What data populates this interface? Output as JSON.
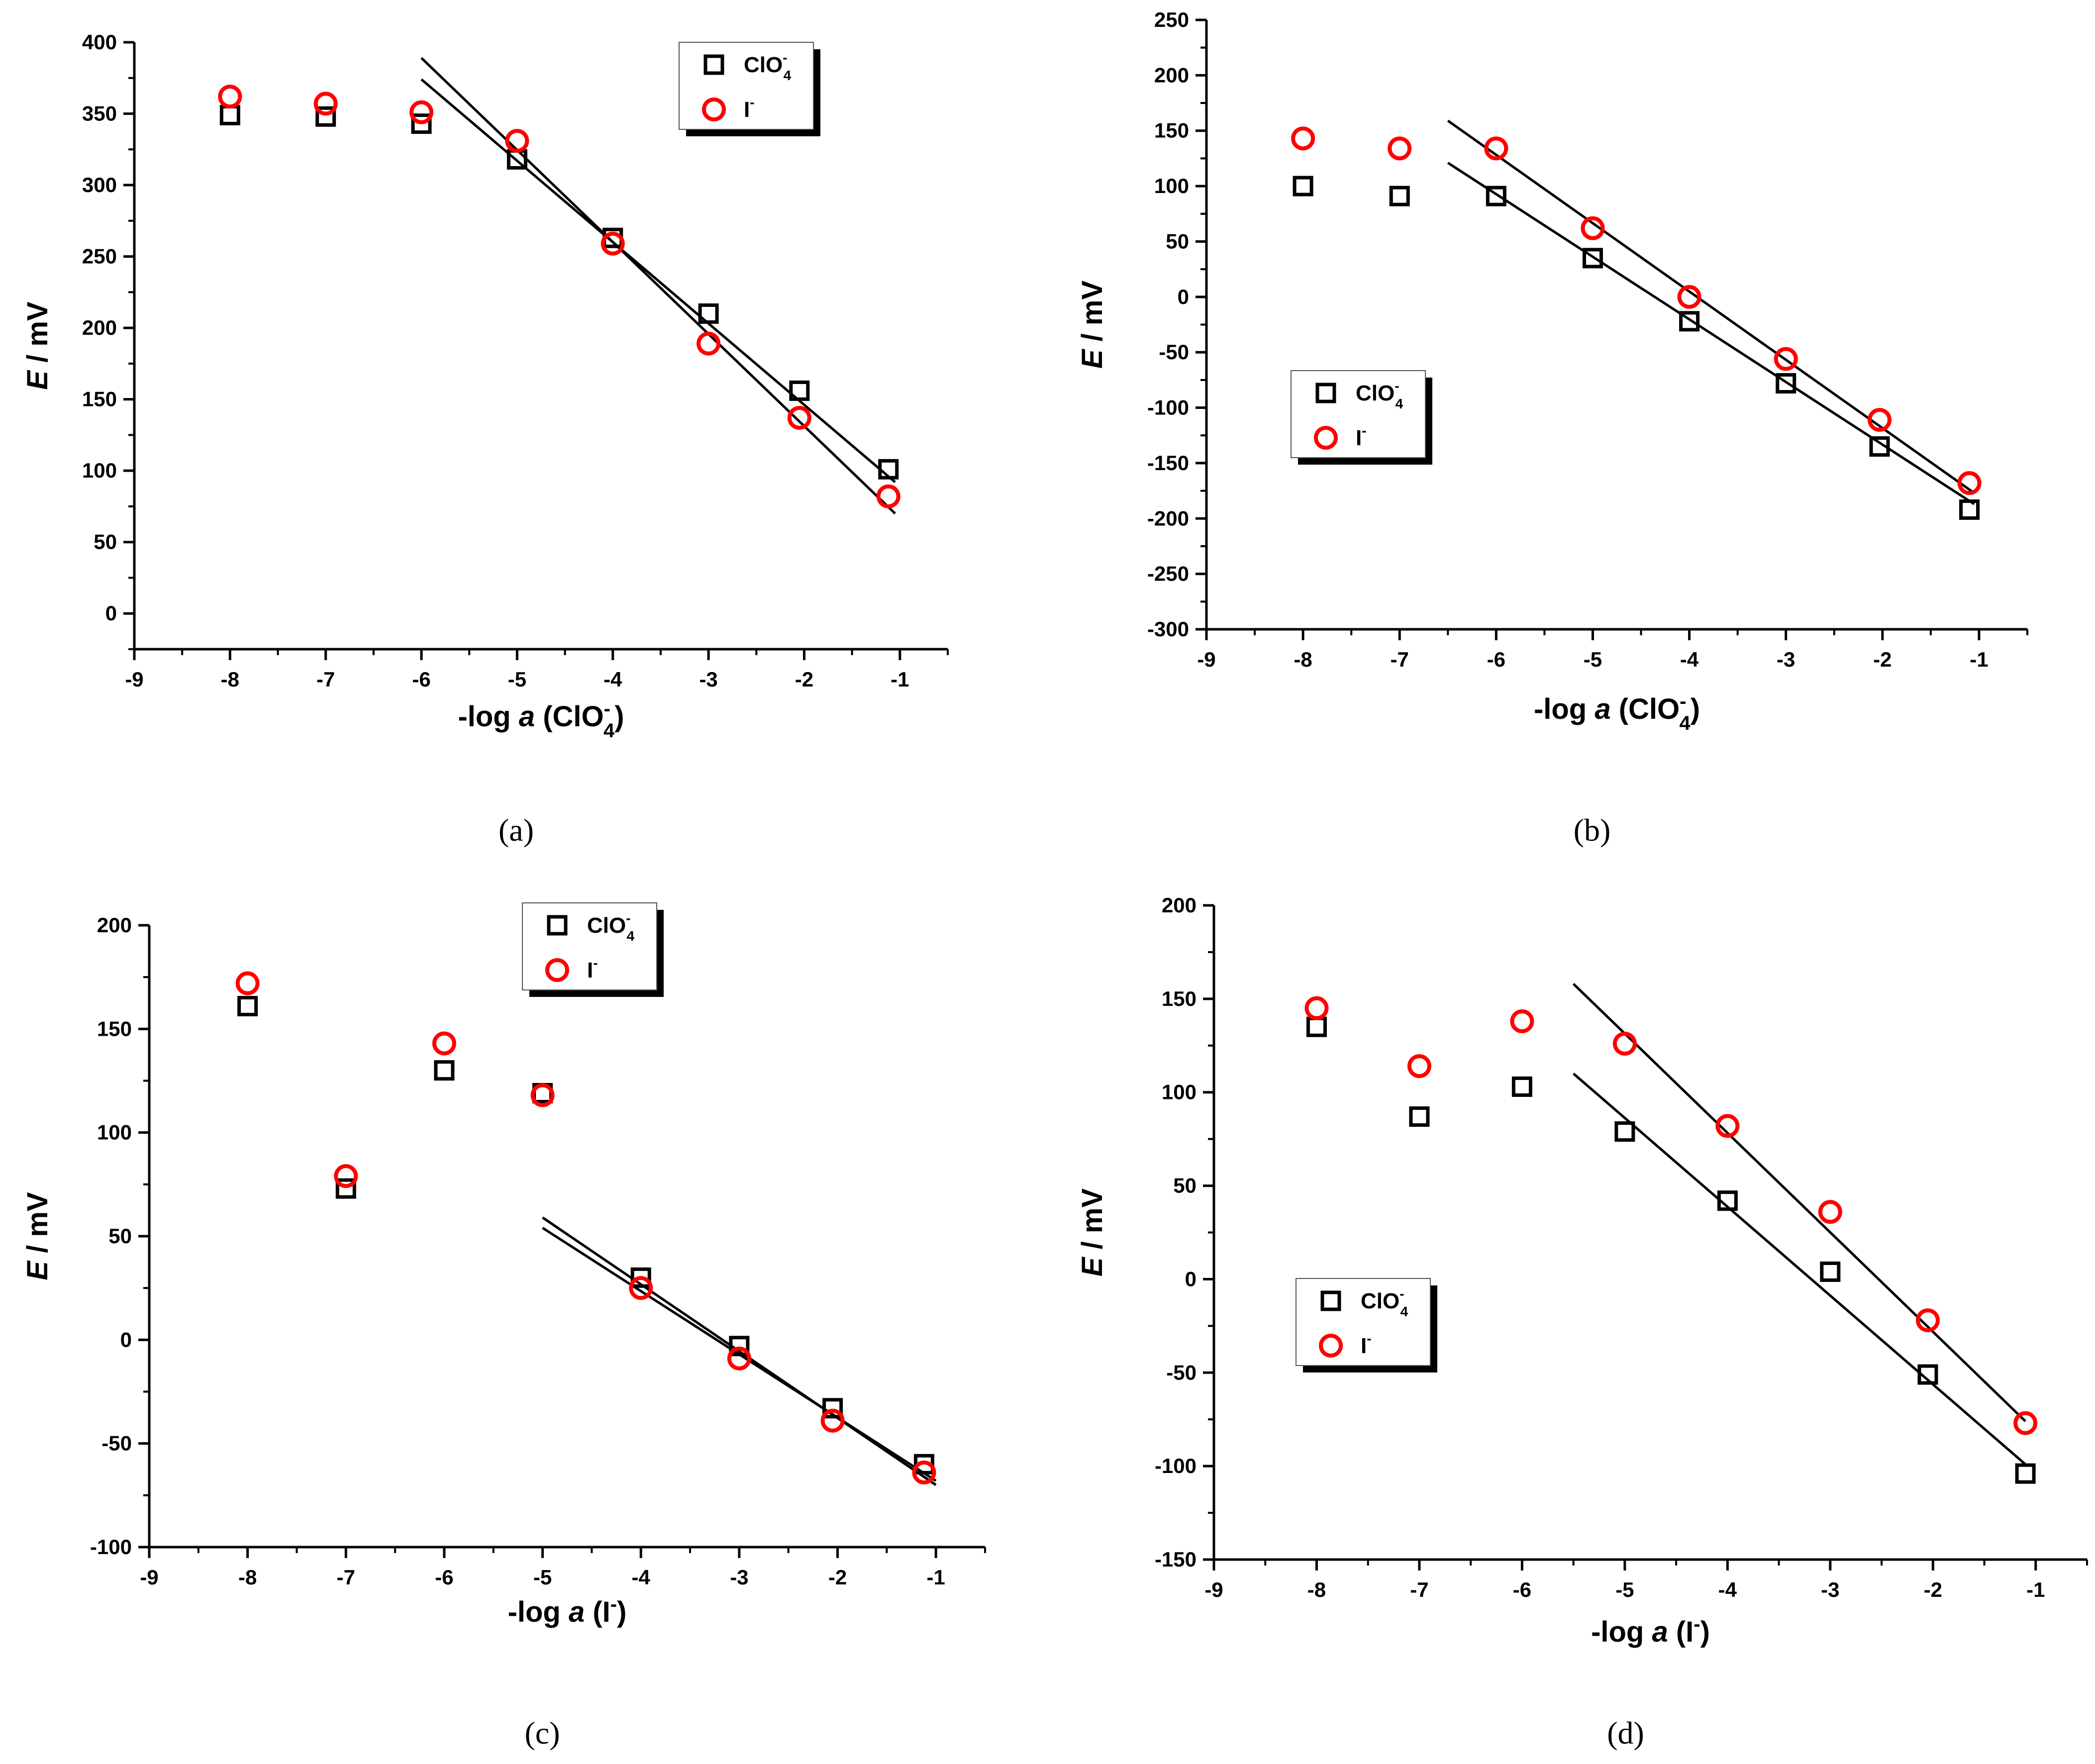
{
  "colors": {
    "axis": "#000000",
    "clo4": "#000000",
    "iodide": "#ff0000",
    "fit": "#000000"
  },
  "chart_data": [
    {
      "type": "scatter",
      "panel_label": "(a)",
      "xlabel": {
        "prefix": "-log ",
        "italic": "a",
        "suffix": " (ClO",
        "sub": "4",
        "sup": "-",
        "close": ")"
      },
      "ylabel": {
        "italic": "E",
        "rest": " / mV"
      },
      "xlim": [
        -9,
        -0.5
      ],
      "ylim": [
        -25,
        400
      ],
      "xticks": [
        -9,
        -8,
        -7,
        -6,
        -5,
        -4,
        -3,
        -2,
        -1
      ],
      "yticks": [
        0,
        50,
        100,
        150,
        200,
        250,
        300,
        350,
        400
      ],
      "legend": {
        "position": "top-right",
        "entries": [
          {
            "base": "ClO",
            "sub": "4",
            "sup": "-"
          },
          {
            "base": "I",
            "sub": "",
            "sup": "-"
          }
        ]
      },
      "series": [
        {
          "name": "ClO4-",
          "marker": "square",
          "x": [
            -8,
            -7,
            -6,
            -5,
            -4,
            -3,
            -2.05,
            -1.12
          ],
          "y": [
            349,
            348,
            343,
            318,
            263,
            210,
            156,
            101
          ]
        },
        {
          "name": "I-",
          "marker": "circle",
          "x": [
            -8,
            -7,
            -6,
            -5,
            -4,
            -3,
            -2.05,
            -1.12
          ],
          "y": [
            362,
            357,
            351,
            331,
            259,
            189,
            137,
            82
          ]
        }
      ],
      "fits": [
        {
          "x": [
            -6,
            -1.05
          ],
          "y": [
            374,
            92
          ]
        },
        {
          "x": [
            -6,
            -1.05
          ],
          "y": [
            389,
            70
          ]
        }
      ]
    },
    {
      "type": "scatter",
      "panel_label": "(b)",
      "xlabel": {
        "prefix": "-log ",
        "italic": "a",
        "suffix": " (ClO",
        "sub": "4",
        "sup": "-",
        "close": ")"
      },
      "ylabel": {
        "italic": "E",
        "rest": " / mV"
      },
      "xlim": [
        -9,
        -0.5
      ],
      "ylim": [
        -300,
        250
      ],
      "xticks": [
        -9,
        -8,
        -7,
        -6,
        -5,
        -4,
        -3,
        -2,
        -1
      ],
      "yticks": [
        -300,
        -250,
        -200,
        -150,
        -100,
        -50,
        0,
        50,
        100,
        150,
        200,
        250
      ],
      "legend": {
        "position": "center-left",
        "entries": [
          {
            "base": "ClO",
            "sub": "4",
            "sup": "-"
          },
          {
            "base": "I",
            "sub": "",
            "sup": "-"
          }
        ]
      },
      "series": [
        {
          "name": "ClO4-",
          "marker": "square",
          "x": [
            -8,
            -7,
            -6,
            -5,
            -4,
            -3,
            -2.03,
            -1.1
          ],
          "y": [
            100,
            91,
            91,
            35,
            -22,
            -78,
            -135,
            -192
          ]
        },
        {
          "name": "I-",
          "marker": "circle",
          "x": [
            -8,
            -7,
            -6,
            -5,
            -4,
            -3,
            -2.03,
            -1.1
          ],
          "y": [
            143,
            134,
            134,
            62,
            0,
            -56,
            -111,
            -168
          ]
        }
      ],
      "fits": [
        {
          "x": [
            -6.5,
            -1.05
          ],
          "y": [
            121,
            -187
          ]
        },
        {
          "x": [
            -6.5,
            -1.05
          ],
          "y": [
            159,
            -177
          ]
        }
      ]
    },
    {
      "type": "scatter",
      "panel_label": "(c)",
      "xlabel": {
        "prefix": "-log ",
        "italic": "a",
        "suffix": " (I",
        "sub": "",
        "sup": "-",
        "close": ")"
      },
      "ylabel": {
        "italic": "E",
        "rest": " / mV"
      },
      "xlim": [
        -9,
        -0.5
      ],
      "ylim": [
        -100,
        200
      ],
      "xticks": [
        -9,
        -8,
        -7,
        -6,
        -5,
        -4,
        -3,
        -2,
        -1
      ],
      "yticks": [
        -100,
        -50,
        0,
        50,
        100,
        150,
        200
      ],
      "legend": {
        "position": "top-center",
        "entries": [
          {
            "base": "ClO",
            "sub": "4",
            "sup": "-"
          },
          {
            "base": "I",
            "sub": "",
            "sup": "-"
          }
        ]
      },
      "series": [
        {
          "name": "ClO4-",
          "marker": "square",
          "x": [
            -8,
            -7,
            -6,
            -5,
            -4,
            -3,
            -2.05,
            -1.12
          ],
          "y": [
            161,
            73,
            130,
            119,
            30,
            -3,
            -33,
            -60
          ]
        },
        {
          "name": "I-",
          "marker": "circle",
          "x": [
            -8,
            -7,
            -6,
            -5,
            -4,
            -3,
            -2.05,
            -1.12
          ],
          "y": [
            172,
            79,
            143,
            118,
            25,
            -9,
            -39,
            -64
          ]
        }
      ],
      "fits": [
        {
          "x": [
            -5,
            -1
          ],
          "y": [
            59,
            -70
          ]
        },
        {
          "x": [
            -5,
            -1
          ],
          "y": [
            54,
            -68
          ]
        }
      ]
    },
    {
      "type": "scatter",
      "panel_label": "(d)",
      "xlabel": {
        "prefix": "-log ",
        "italic": "a",
        "suffix": " (I",
        "sub": "",
        "sup": "-",
        "close": ")"
      },
      "ylabel": {
        "italic": "E",
        "rest": " / mV"
      },
      "xlim": [
        -9,
        -0.5
      ],
      "ylim": [
        -150,
        200
      ],
      "xticks": [
        -9,
        -8,
        -7,
        -6,
        -5,
        -4,
        -3,
        -2,
        -1
      ],
      "yticks": [
        -150,
        -100,
        -50,
        0,
        50,
        100,
        150,
        200
      ],
      "legend": {
        "position": "bottom-left",
        "entries": [
          {
            "base": "ClO",
            "sub": "4",
            "sup": "-"
          },
          {
            "base": "I",
            "sub": "",
            "sup": "-"
          }
        ]
      },
      "series": [
        {
          "name": "ClO4-",
          "marker": "square",
          "x": [
            -8,
            -7,
            -6,
            -5,
            -4,
            -3,
            -2.05,
            -1.1
          ],
          "y": [
            135,
            87,
            103,
            79,
            42,
            4,
            -51,
            -104
          ]
        },
        {
          "name": "I-",
          "marker": "circle",
          "x": [
            -8,
            -7,
            -6,
            -5,
            -4,
            -3,
            -2.05,
            -1.1
          ],
          "y": [
            145,
            114,
            138,
            126,
            82,
            36,
            -22,
            -77
          ]
        }
      ],
      "fits": [
        {
          "x": [
            -5.5,
            -1.08
          ],
          "y": [
            110,
            -100
          ]
        },
        {
          "x": [
            -5.5,
            -1.1
          ],
          "y": [
            158,
            -76
          ]
        }
      ]
    }
  ]
}
